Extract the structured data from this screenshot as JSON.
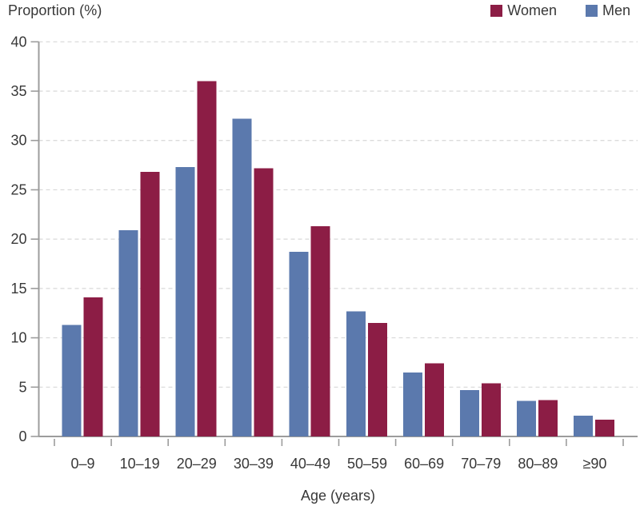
{
  "chart_data": {
    "type": "bar",
    "title": "",
    "ylabel": "Proportion (%)",
    "xlabel": "Age (years)",
    "categories": [
      "0–9",
      "10–19",
      "20–29",
      "30–39",
      "40–49",
      "50–59",
      "60–69",
      "70–79",
      "80–89",
      "≥90"
    ],
    "series": [
      {
        "name": "Men",
        "color": "#5b79ad",
        "values": [
          11.3,
          20.9,
          27.3,
          32.2,
          18.7,
          12.7,
          6.5,
          4.7,
          3.6,
          2.1
        ]
      },
      {
        "name": "Women",
        "color": "#8c1d45",
        "values": [
          14.1,
          26.8,
          36.0,
          27.2,
          21.3,
          11.5,
          7.4,
          5.4,
          3.7,
          1.7
        ]
      }
    ],
    "legend_items": [
      {
        "label": "Women",
        "color": "#8c1d45"
      },
      {
        "label": "Men",
        "color": "#5b79ad"
      }
    ],
    "legend_position": "top-right",
    "ylim": [
      0,
      40
    ],
    "yticks": [
      0,
      5,
      10,
      15,
      20,
      25,
      30,
      35,
      40
    ],
    "grid": "horizontal-dashed",
    "grid_color": "#d8d8d8",
    "axis_color": "#9c9c9c",
    "text_color": "#383838"
  }
}
